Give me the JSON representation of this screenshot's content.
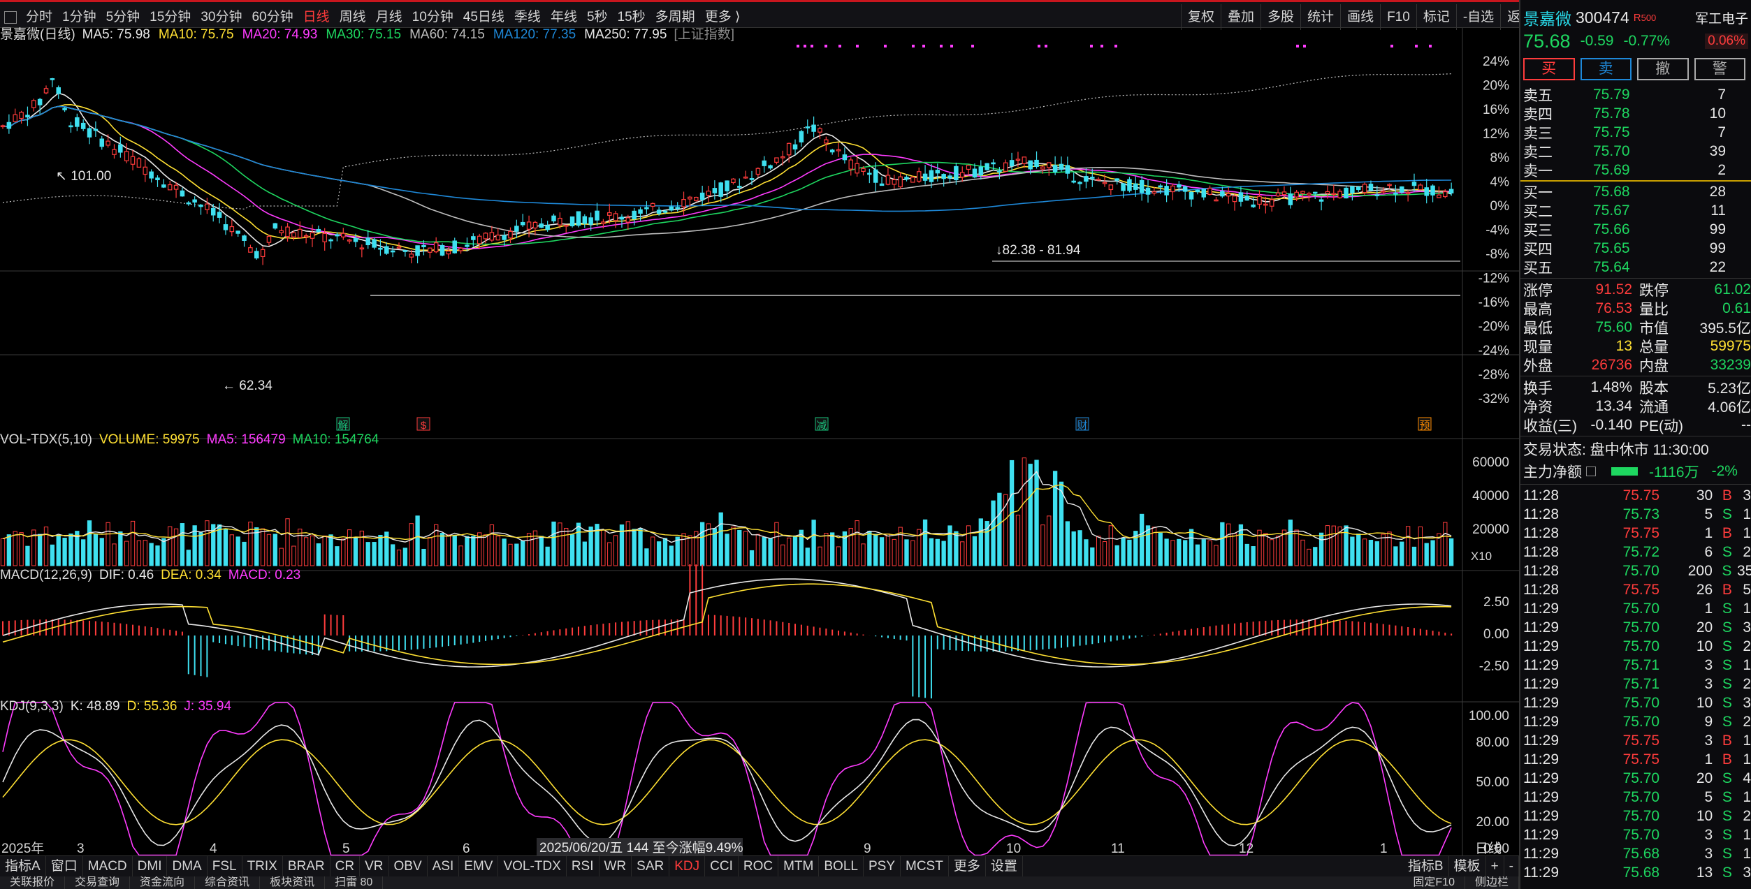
{
  "toolbar": {
    "periods": [
      "分时",
      "1分钟",
      "5分钟",
      "15分钟",
      "30分钟",
      "60分钟",
      "日线",
      "周线",
      "月线",
      "10分钟",
      "45日线",
      "季线",
      "年线",
      "5秒",
      "15秒",
      "多周期",
      "更多 ⟩"
    ],
    "active_period": "日线",
    "right_tools": [
      "复权",
      "叠加",
      "多股",
      "统计",
      "画线",
      "F10",
      "标记",
      "-自选",
      "返回"
    ]
  },
  "main_legend": {
    "title": "景嘉微(日线)",
    "ma": [
      {
        "label": "MA5: 75.98",
        "color": "#e8e8e8"
      },
      {
        "label": "MA10: 75.75",
        "color": "#ffe033"
      },
      {
        "label": "MA20: 74.93",
        "color": "#ff3cff"
      },
      {
        "label": "MA30: 75.15",
        "color": "#1ed760"
      },
      {
        "label": "MA60: 74.15",
        "color": "#bdbdbd"
      },
      {
        "label": "MA120: 77.35",
        "color": "#1e88d8"
      },
      {
        "label": "MA250: 77.95",
        "color": "#e8e8e8"
      }
    ],
    "overlay": "[上证指数]"
  },
  "price_annotations": {
    "high": "101.00",
    "low": "62.34",
    "range": "82.38 - 81.94"
  },
  "pct_axis": [
    "24%",
    "20%",
    "16%",
    "12%",
    "8%",
    "4%",
    "0%",
    "-4%",
    "-8%",
    "-12%",
    "-16%",
    "-20%",
    "-24%",
    "-28%",
    "-32%"
  ],
  "event_markers": [
    {
      "label": "解",
      "color": "#19c37d"
    },
    {
      "label": "$",
      "color": "#ff3c3c"
    },
    {
      "label": "减",
      "color": "#19c37d"
    },
    {
      "label": "财",
      "color": "#1e88d8"
    },
    {
      "label": "预",
      "color": "#ff8c00"
    }
  ],
  "vol_legend": {
    "title": "VOL-TDX(5,10)",
    "volume": "VOLUME: 59975",
    "ma5": "MA5: 156479",
    "ma10": "MA10: 154764"
  },
  "vol_axis": [
    "60000",
    "40000",
    "20000"
  ],
  "vol_unit": "X10",
  "macd_legend": {
    "title": "MACD(12,26,9)",
    "dif": "DIF: 0.46",
    "dea": "DEA: 0.34",
    "macd": "MACD: 0.23"
  },
  "macd_axis": [
    "2.50",
    "0.00",
    "-2.50"
  ],
  "kdj_legend": {
    "title": "KDJ(9,3,3)",
    "k": "K: 48.89",
    "d": "D: 55.36",
    "j": "J: 35.94"
  },
  "kdj_axis": [
    "100.00",
    "80.00",
    "50.00",
    "20.00",
    "0.00"
  ],
  "x_axis": {
    "labels": [
      "2025年",
      "3",
      "4",
      "5",
      "6",
      "9",
      "10",
      "11",
      "12",
      "1"
    ],
    "cursor_label": "2025/06/20/五 144 至今涨幅9.49%",
    "period_label": "日线"
  },
  "bottom_tabs": [
    "指标A",
    "窗口",
    "MACD",
    "DMI",
    "DMA",
    "FSL",
    "TRIX",
    "BRAR",
    "CR",
    "VR",
    "OBV",
    "ASI",
    "EMV",
    "VOL-TDX",
    "RSI",
    "WR",
    "SAR",
    "KDJ",
    "CCI",
    "ROC",
    "MTM",
    "BOLL",
    "PSY",
    "MCST",
    "更多",
    "设置"
  ],
  "active_tab": "KDJ",
  "bottom_right_tabs": [
    "指标B",
    "模板",
    "+",
    "-"
  ],
  "footer_tabs": [
    "关联报价",
    "交易查询",
    "资金流向",
    "综合资讯",
    "板块资讯",
    "扫雷 80"
  ],
  "footer_right": [
    "固定F10",
    "侧边栏"
  ],
  "quote": {
    "name": "景嘉微",
    "code": "300474",
    "flag": "R",
    "flag_sub": "500",
    "sector": "军工电子",
    "sector_pct": "0.06%",
    "price": "75.68",
    "change": "-0.59",
    "pct": "-0.77%",
    "buttons": [
      "买",
      "卖",
      "撤",
      "警"
    ],
    "asks": [
      {
        "label": "卖五",
        "price": "75.79",
        "vol": "7"
      },
      {
        "label": "卖四",
        "price": "75.78",
        "vol": "10"
      },
      {
        "label": "卖三",
        "price": "75.75",
        "vol": "7"
      },
      {
        "label": "卖二",
        "price": "75.70",
        "vol": "39"
      },
      {
        "label": "卖一",
        "price": "75.69",
        "vol": "2"
      }
    ],
    "bids": [
      {
        "label": "买一",
        "price": "75.68",
        "vol": "28"
      },
      {
        "label": "买二",
        "price": "75.67",
        "vol": "11"
      },
      {
        "label": "买三",
        "price": "75.66",
        "vol": "99"
      },
      {
        "label": "买四",
        "price": "75.65",
        "vol": "99"
      },
      {
        "label": "买五",
        "price": "75.64",
        "vol": "22"
      }
    ],
    "stats": [
      {
        "l1": "涨停",
        "v1": "91.52",
        "c1": "red",
        "l2": "跌停",
        "v2": "61.02",
        "c2": "green"
      },
      {
        "l1": "最高",
        "v1": "76.53",
        "c1": "red",
        "l2": "量比",
        "v2": "0.61",
        "c2": "green"
      },
      {
        "l1": "最低",
        "v1": "75.60",
        "c1": "green",
        "l2": "市值",
        "v2": "395.5亿",
        "c2": "white"
      },
      {
        "l1": "现量",
        "v1": "13",
        "c1": "yellow",
        "l2": "总量",
        "v2": "59975",
        "c2": "yellow"
      },
      {
        "l1": "外盘",
        "v1": "26736",
        "c1": "red",
        "l2": "内盘",
        "v2": "33239",
        "c2": "green"
      }
    ],
    "stats2": [
      {
        "l1": "换手",
        "v1": "1.48%",
        "l2": "股本",
        "v2": "5.23亿"
      },
      {
        "l1": "净资",
        "v1": "13.34",
        "l2": "流通",
        "v2": "4.06亿"
      },
      {
        "l1": "收益(三)",
        "v1": "-0.140",
        "l2": "PE(动)",
        "v2": "--"
      }
    ],
    "status": "交易状态: 盘中休市 11:30:00",
    "main_flow": {
      "label": "主力净额",
      "value": "-1116万",
      "pct": "-2%"
    },
    "ticks": [
      {
        "t": "11:28",
        "p": "75.75",
        "v": "30",
        "s": "B",
        "e": "3"
      },
      {
        "t": "11:28",
        "p": "75.73",
        "v": "5",
        "s": "S",
        "e": "1"
      },
      {
        "t": "11:28",
        "p": "75.75",
        "v": "1",
        "s": "B",
        "e": "1"
      },
      {
        "t": "11:28",
        "p": "75.72",
        "v": "6",
        "s": "S",
        "e": "2"
      },
      {
        "t": "11:28",
        "p": "75.70",
        "v": "200",
        "s": "S",
        "e": "35"
      },
      {
        "t": "11:28",
        "p": "75.75",
        "v": "26",
        "s": "B",
        "e": "5"
      },
      {
        "t": "11:29",
        "p": "75.70",
        "v": "1",
        "s": "S",
        "e": "1"
      },
      {
        "t": "11:29",
        "p": "75.70",
        "v": "20",
        "s": "S",
        "e": "3"
      },
      {
        "t": "11:29",
        "p": "75.70",
        "v": "10",
        "s": "S",
        "e": "2"
      },
      {
        "t": "11:29",
        "p": "75.71",
        "v": "3",
        "s": "S",
        "e": "1"
      },
      {
        "t": "11:29",
        "p": "75.71",
        "v": "3",
        "s": "S",
        "e": "2"
      },
      {
        "t": "11:29",
        "p": "75.70",
        "v": "10",
        "s": "S",
        "e": "3"
      },
      {
        "t": "11:29",
        "p": "75.70",
        "v": "9",
        "s": "S",
        "e": "2"
      },
      {
        "t": "11:29",
        "p": "75.75",
        "v": "3",
        "s": "B",
        "e": "1"
      },
      {
        "t": "11:29",
        "p": "75.75",
        "v": "1",
        "s": "B",
        "e": "1"
      },
      {
        "t": "11:29",
        "p": "75.70",
        "v": "20",
        "s": "S",
        "e": "4"
      },
      {
        "t": "11:29",
        "p": "75.70",
        "v": "5",
        "s": "S",
        "e": "1"
      },
      {
        "t": "11:29",
        "p": "75.70",
        "v": "10",
        "s": "S",
        "e": "2"
      },
      {
        "t": "11:29",
        "p": "75.70",
        "v": "3",
        "s": "S",
        "e": "1"
      },
      {
        "t": "11:29",
        "p": "75.68",
        "v": "3",
        "s": "S",
        "e": "1"
      },
      {
        "t": "11:29",
        "p": "75.68",
        "v": "13",
        "s": "S",
        "e": "3"
      }
    ]
  },
  "colors": {
    "up": "#ff3c3c",
    "down": "#3fe0f0",
    "index": "#bdbdbd",
    "ma5": "#e8e8e8",
    "ma10": "#ffe033",
    "ma20": "#ff3cff",
    "ma30": "#1ed760",
    "ma60": "#bdbdbd",
    "ma120": "#1e88d8"
  }
}
